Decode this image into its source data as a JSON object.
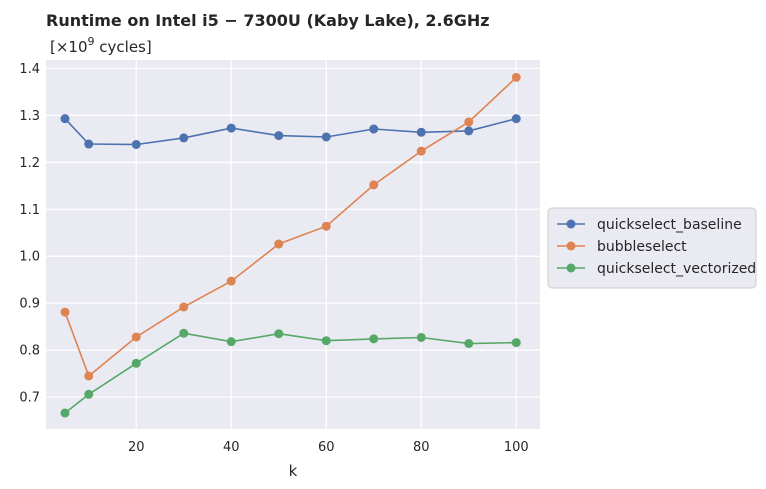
{
  "chart_data": {
    "type": "line",
    "title": "Runtime on Intel i5 − 7300U (Kaby Lake),  2.6GHz",
    "subtitle_prefix": "[×10",
    "subtitle_exp": "9",
    "subtitle_suffix": " cycles]",
    "xlabel": "k",
    "ylabel": "",
    "x": [
      5,
      10,
      20,
      30,
      40,
      50,
      60,
      70,
      80,
      90,
      100
    ],
    "xlim": [
      1,
      105
    ],
    "ylim": [
      0.632,
      1.418
    ],
    "xticks": [
      20,
      40,
      60,
      80,
      100
    ],
    "yticks": [
      0.7,
      0.8,
      0.9,
      1.0,
      1.1,
      1.2,
      1.3,
      1.4
    ],
    "grid": true,
    "legend_position": "center-right-outside",
    "series": [
      {
        "name": "quickselect_baseline",
        "color": "#4c72b0",
        "values": [
          1.293,
          1.239,
          1.238,
          1.252,
          1.273,
          1.257,
          1.254,
          1.271,
          1.264,
          1.267,
          1.293
        ]
      },
      {
        "name": "bubbleselect",
        "color": "#dd8452",
        "values": [
          0.881,
          0.745,
          0.828,
          0.892,
          0.947,
          1.026,
          1.064,
          1.152,
          1.224,
          1.286,
          1.381
        ]
      },
      {
        "name": "quickselect_vectorized",
        "color": "#55a868",
        "values": [
          0.666,
          0.706,
          0.772,
          0.836,
          0.818,
          0.835,
          0.82,
          0.824,
          0.827,
          0.814,
          0.816
        ]
      }
    ]
  }
}
